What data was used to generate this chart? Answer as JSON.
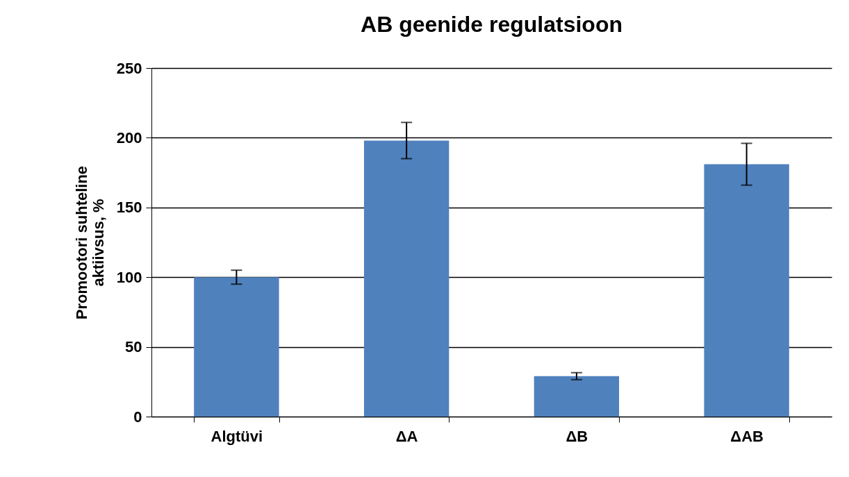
{
  "chart_data": {
    "type": "bar",
    "title": "AB geenide regulatsioon",
    "ylabel": "Promootori suhteline aktiivsus, %",
    "categories": [
      "Algtüvi",
      "ΔA",
      "ΔB",
      "ΔAB"
    ],
    "values": [
      100,
      198,
      29,
      181
    ],
    "errors": [
      5,
      13,
      2.5,
      15
    ],
    "color": "#4f81bd",
    "ylim": [
      0,
      250
    ],
    "yticks": [
      0,
      50,
      100,
      150,
      200,
      250
    ],
    "grid": "y"
  }
}
